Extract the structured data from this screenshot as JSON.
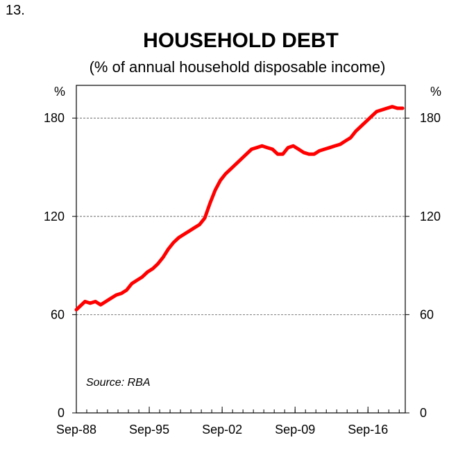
{
  "slide_number": "13.",
  "chart_data": {
    "type": "line",
    "title": "HOUSEHOLD DEBT",
    "subtitle": "(% of annual household disposable income)",
    "y_unit_left": "%",
    "y_unit_right": "%",
    "ylim": [
      0,
      200
    ],
    "yticks": [
      "0",
      "60",
      "120",
      "180"
    ],
    "ytick_values": [
      0,
      60,
      120,
      180
    ],
    "xticks": [
      "Sep-88",
      "Sep-95",
      "Sep-02",
      "Sep-09",
      "Sep-16"
    ],
    "xtick_values": [
      1988.67,
      1995.67,
      2002.67,
      2009.67,
      2016.67
    ],
    "xlim": [
      1988.67,
      2020.25
    ],
    "grid": "horizontal dashed",
    "source": "Source: RBA",
    "series": [
      {
        "color": "#ff0000",
        "x": [
          1988.67,
          1989.5,
          1990.0,
          1990.5,
          1991.0,
          1991.5,
          1992.0,
          1992.5,
          1993.0,
          1993.5,
          1994.0,
          1994.5,
          1995.0,
          1995.5,
          1996.0,
          1996.5,
          1997.0,
          1997.5,
          1998.0,
          1998.5,
          1999.0,
          1999.5,
          2000.0,
          2000.5,
          2001.0,
          2001.5,
          2002.0,
          2002.5,
          2003.0,
          2003.5,
          2004.0,
          2004.5,
          2005.0,
          2005.5,
          2006.0,
          2006.5,
          2007.0,
          2007.5,
          2008.0,
          2008.5,
          2009.0,
          2009.5,
          2010.0,
          2010.5,
          2011.0,
          2011.5,
          2012.0,
          2012.5,
          2013.0,
          2013.5,
          2014.0,
          2014.5,
          2015.0,
          2015.5,
          2016.0,
          2016.5,
          2017.0,
          2017.5,
          2018.0,
          2018.5,
          2019.0,
          2019.5,
          2020.0
        ],
        "y": [
          63,
          68,
          67,
          68,
          66,
          68,
          70,
          72,
          73,
          75,
          79,
          81,
          83,
          86,
          88,
          91,
          95,
          100,
          104,
          107,
          109,
          111,
          113,
          115,
          119,
          128,
          136,
          142,
          146,
          149,
          152,
          155,
          158,
          161,
          162,
          163,
          162,
          161,
          158,
          158,
          162,
          163,
          161,
          159,
          158,
          158,
          160,
          161,
          162,
          163,
          164,
          166,
          168,
          172,
          175,
          178,
          181,
          184,
          185,
          186,
          187,
          186,
          186
        ]
      }
    ]
  }
}
